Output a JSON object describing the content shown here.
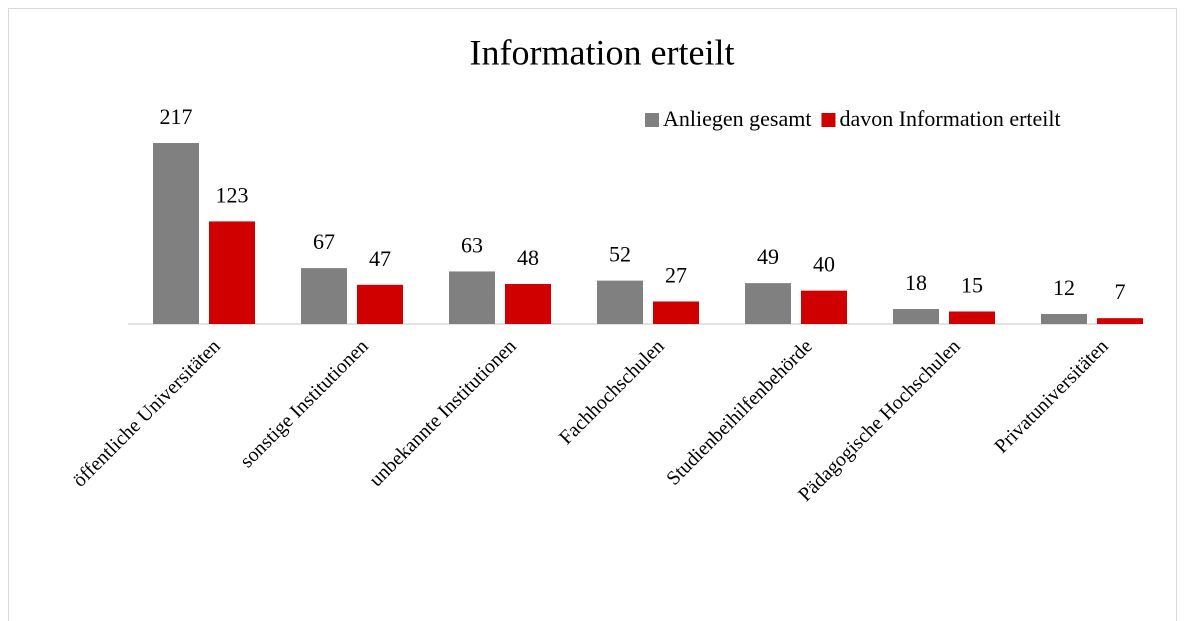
{
  "chart_data": {
    "type": "bar",
    "title": "Information erteilt",
    "categories": [
      "öffentliche Universitäten",
      "sonstige Institutionen",
      "unbekannte Institutionen",
      "Fachhochschulen",
      "Studienbeihilfenbehörde",
      "Pädagogische Hochschulen",
      "Privatuniversitäten"
    ],
    "series": [
      {
        "name": "Anliegen gesamt",
        "color": "#808080",
        "values": [
          217,
          67,
          63,
          52,
          49,
          18,
          12
        ]
      },
      {
        "name": "davon Information erteilt",
        "color": "#d00000",
        "values": [
          123,
          47,
          48,
          27,
          40,
          15,
          7
        ]
      }
    ],
    "ylim": [
      0,
      250
    ],
    "legend": "top-right"
  }
}
